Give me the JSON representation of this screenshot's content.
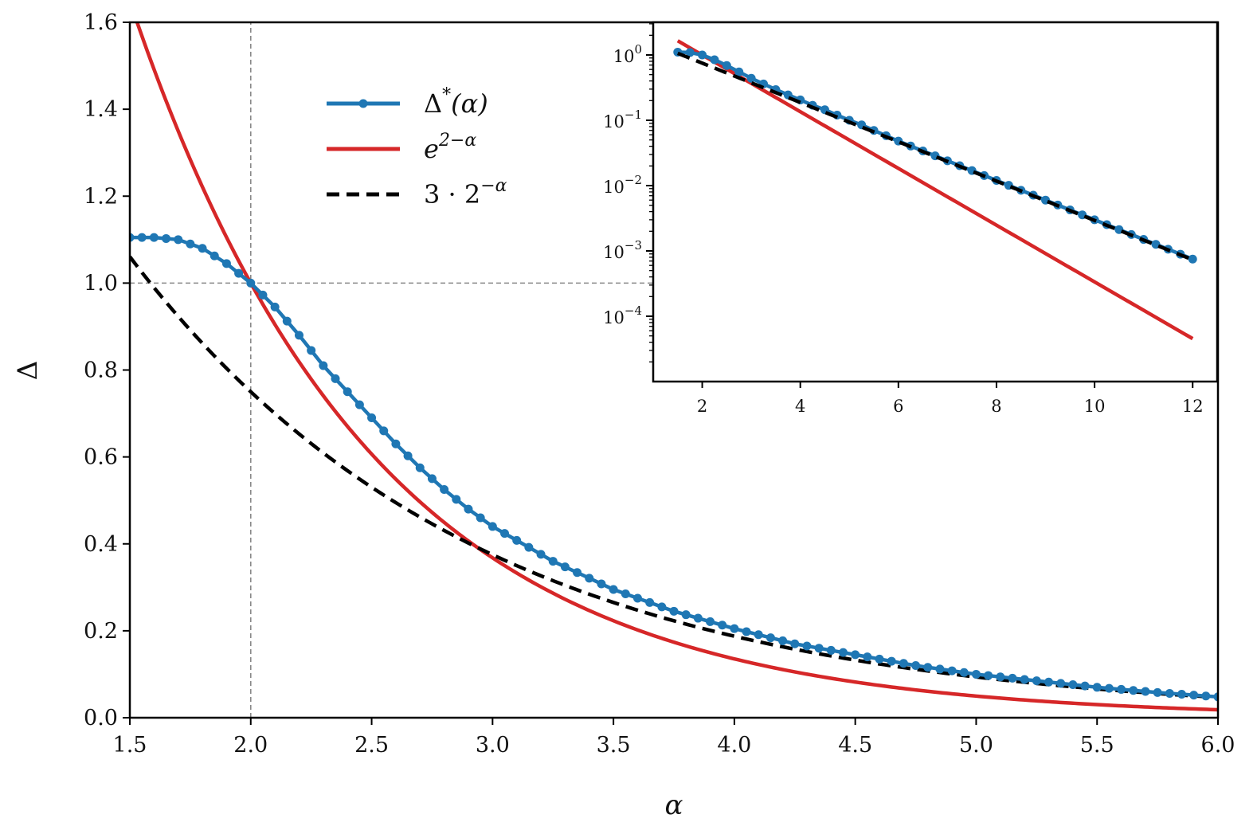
{
  "chart_data": {
    "main": {
      "type": "line",
      "xlabel": "α",
      "ylabel": "Δ",
      "xlim": [
        1.5,
        6.0
      ],
      "ylim": [
        0.0,
        1.6
      ],
      "xticks": [
        "1.5",
        "2.0",
        "2.5",
        "3.0",
        "3.5",
        "4.0",
        "4.5",
        "5.0",
        "5.5",
        "6.0"
      ],
      "yticks": [
        "0.0",
        "0.2",
        "0.4",
        "0.6",
        "0.8",
        "1.0",
        "1.2",
        "1.4",
        "1.6"
      ],
      "reference_lines": {
        "x": 2.0,
        "y": 1.0
      },
      "legend": {
        "position": "upper-center",
        "entries": [
          {
            "name": "Δ*(α)",
            "base": "Δ",
            "sup": "*",
            "suffix": "(α)",
            "style": "line-with-markers",
            "color": "#1f77b4"
          },
          {
            "name": "e^(2−α)",
            "base": "e",
            "sup": "2−α",
            "suffix": "",
            "style": "solid",
            "color": "#d62728"
          },
          {
            "name": "3·2^(−α)",
            "base": "3 · 2",
            "sup": "−α",
            "suffix": "",
            "style": "dashed",
            "color": "#000000"
          }
        ]
      },
      "series": [
        {
          "name": "Δ*(α)",
          "color": "#1f77b4",
          "marker": "circle",
          "x": [
            1.5,
            1.6,
            1.7,
            1.8,
            1.9,
            2.0,
            2.1,
            2.2,
            2.3,
            2.4,
            2.5,
            2.6,
            2.7,
            2.8,
            2.9,
            3.0,
            3.25,
            3.5,
            3.75,
            4.0,
            4.25,
            4.5,
            4.75,
            5.0,
            5.25,
            5.5,
            5.75,
            6.0
          ],
          "y": [
            1.105,
            1.105,
            1.1,
            1.08,
            1.045,
            1.0,
            0.945,
            0.88,
            0.81,
            0.75,
            0.69,
            0.63,
            0.575,
            0.525,
            0.48,
            0.44,
            0.36,
            0.295,
            0.245,
            0.205,
            0.17,
            0.145,
            0.12,
            0.1,
            0.085,
            0.07,
            0.058,
            0.048
          ],
          "sample_step": 0.05
        },
        {
          "name": "e^(2−α)",
          "color": "#d62728",
          "function": "exp(2 - x)",
          "x_range": [
            1.5,
            6.0
          ]
        },
        {
          "name": "3·2^(−α)",
          "color": "#000000",
          "dash": "dashed",
          "function": "3 * 2^(-x)",
          "x_range": [
            1.5,
            6.0
          ]
        }
      ]
    },
    "inset": {
      "type": "line",
      "yscale": "log",
      "xlim": [
        1.0,
        12.5
      ],
      "ylim_exponent": [
        -5,
        0.5
      ],
      "xticks": [
        "2",
        "4",
        "6",
        "8",
        "10",
        "12"
      ],
      "yticks": [
        {
          "base": "10",
          "exp": "0"
        },
        {
          "base": "10",
          "exp": "−1"
        },
        {
          "base": "10",
          "exp": "−2"
        },
        {
          "base": "10",
          "exp": "−3"
        },
        {
          "base": "10",
          "exp": "−4"
        }
      ],
      "series": [
        {
          "name": "Δ*(α)",
          "color": "#1f77b4",
          "marker": "circle",
          "x_range": [
            1.5,
            12.0
          ],
          "sample_step": 0.25
        },
        {
          "name": "e^(2−α)",
          "color": "#d62728",
          "function": "exp(2 - x)",
          "x_range": [
            1.5,
            12.0
          ]
        },
        {
          "name": "3·2^(−α)",
          "color": "#000000",
          "dash": "dashed",
          "function": "3 * 2^(-x)",
          "x_range": [
            1.5,
            12.0
          ]
        }
      ]
    }
  }
}
